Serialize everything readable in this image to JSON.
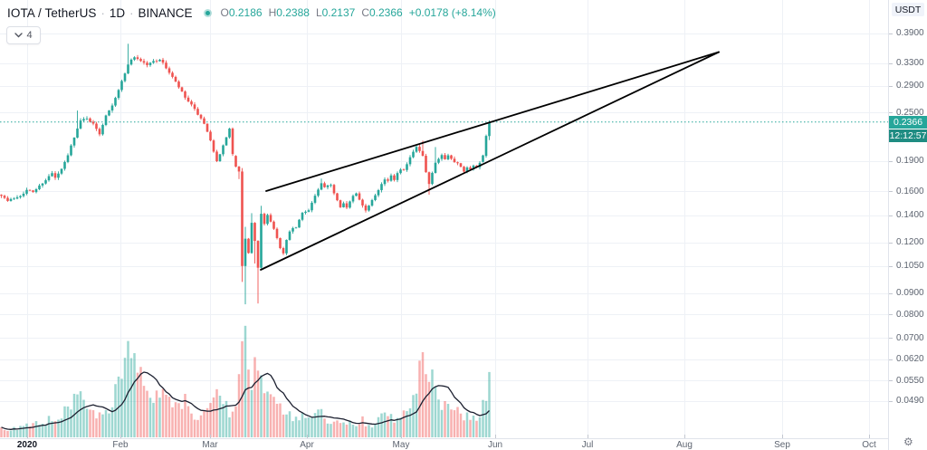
{
  "header": {
    "symbol": "IOTA / TetherUS",
    "separator": "·",
    "interval": "1D",
    "exchange": "BINANCE",
    "ohlc": [
      {
        "label": "O",
        "value": "0.2186"
      },
      {
        "label": "H",
        "value": "0.2388"
      },
      {
        "label": "L",
        "value": "0.2137"
      },
      {
        "label": "C",
        "value": "0.2366"
      }
    ],
    "change": "+0.0178 (+8.14%)",
    "legend_collapse_count": "4"
  },
  "price_axis": {
    "currency_label": "USDT",
    "levels": [
      0.39,
      0.33,
      0.29,
      0.25,
      0.19,
      0.16,
      0.14,
      0.12,
      0.105,
      0.09,
      0.08,
      0.07,
      0.062,
      0.055,
      0.049
    ],
    "level_labels": [
      "0.3900",
      "0.3300",
      "0.2900",
      "0.2500",
      "0.1900",
      "0.1600",
      "0.1400",
      "0.1200",
      "0.1050",
      "0.0900",
      "0.0800",
      "0.0700",
      "0.0620",
      "0.0550",
      "0.0490"
    ],
    "last_price_label": "0.2366",
    "countdown": "12:12:57"
  },
  "time_axis": {
    "ticks": [
      {
        "label": "2020",
        "x": 30,
        "year": true
      },
      {
        "label": "Feb",
        "x": 133
      },
      {
        "label": "Mar",
        "x": 232
      },
      {
        "label": "Apr",
        "x": 339
      },
      {
        "label": "May",
        "x": 443
      },
      {
        "label": "Jun",
        "x": 547
      },
      {
        "label": "Jul",
        "x": 649
      },
      {
        "label": "Aug",
        "x": 756
      },
      {
        "label": "Sep",
        "x": 864
      },
      {
        "label": "Oct",
        "x": 960
      }
    ]
  },
  "colors": {
    "up": "#26a69a",
    "down": "#ef5350",
    "up_volume": "rgba(38,166,154,0.45)",
    "down_volume": "rgba(239,83,80,0.45)",
    "grid": "#eef1f6",
    "trendline": "#000000",
    "volume_ma": "#1c2030",
    "price_line": "#26a69a",
    "price_badge_bg": "#26a69a",
    "countdown_badge_bg": "#1f8c82",
    "text": "#131722",
    "axis_text": "#5d6470"
  },
  "chart_data": {
    "type": "candlestick",
    "title": "IOTA / TetherUS 1D BINANCE",
    "scale": "logarithmic",
    "grid": true,
    "x_range": "Dec 2019 - Oct 2020 (data ends early Jun 2020)",
    "y_axis_levels": [
      0.39,
      0.33,
      0.29,
      0.25,
      0.19,
      0.16,
      0.14,
      0.12,
      0.105,
      0.09,
      0.08,
      0.07,
      0.062,
      0.055,
      0.049
    ],
    "current_price": 0.2366,
    "last_candle": {
      "open": 0.2186,
      "high": 0.2388,
      "low": 0.2137,
      "close": 0.2366,
      "change": 0.0178,
      "change_pct": 8.14
    },
    "candle_count": 155,
    "price_path_anchors": [
      [
        0,
        0.157
      ],
      [
        2,
        0.1515
      ],
      [
        4,
        0.154
      ],
      [
        6,
        0.1565
      ],
      [
        8,
        0.161
      ],
      [
        10,
        0.1595
      ],
      [
        12,
        0.165
      ],
      [
        14,
        0.171
      ],
      [
        16,
        0.177
      ],
      [
        17,
        0.1725
      ],
      [
        19,
        0.181
      ],
      [
        21,
        0.196
      ],
      [
        23,
        0.218
      ],
      [
        25,
        0.238
      ],
      [
        27,
        0.2425
      ],
      [
        29,
        0.2335
      ],
      [
        31,
        0.2215
      ],
      [
        33,
        0.2465
      ],
      [
        35,
        0.261
      ],
      [
        37,
        0.284
      ],
      [
        39,
        0.311
      ],
      [
        40,
        0.329
      ],
      [
        42,
        0.342
      ],
      [
        44,
        0.3345
      ],
      [
        46,
        0.3265
      ],
      [
        48,
        0.3335
      ],
      [
        50,
        0.337
      ],
      [
        52,
        0.3215
      ],
      [
        54,
        0.3045
      ],
      [
        56,
        0.288
      ],
      [
        58,
        0.2715
      ],
      [
        60,
        0.26
      ],
      [
        62,
        0.2475
      ],
      [
        64,
        0.2335
      ],
      [
        66,
        0.2125
      ],
      [
        68,
        0.1905
      ],
      [
        69,
        0.1965
      ],
      [
        70,
        0.2065
      ],
      [
        71,
        0.2175
      ],
      [
        72,
        0.2275
      ],
      [
        73,
        0.1975
      ],
      [
        74,
        0.184
      ],
      [
        75,
        0.179
      ],
      [
        76,
        0.105
      ],
      [
        77,
        0.1225
      ],
      [
        78,
        0.113
      ],
      [
        79,
        0.134
      ],
      [
        80,
        0.121
      ],
      [
        81,
        0.104
      ],
      [
        82,
        0.141
      ],
      [
        83,
        0.1335
      ],
      [
        84,
        0.1405
      ],
      [
        85,
        0.135
      ],
      [
        86,
        0.1295
      ],
      [
        87,
        0.1235
      ],
      [
        88,
        0.116
      ],
      [
        89,
        0.1125
      ],
      [
        90,
        0.121
      ],
      [
        91,
        0.128
      ],
      [
        93,
        0.1305
      ],
      [
        95,
        0.1415
      ],
      [
        97,
        0.1445
      ],
      [
        99,
        0.156
      ],
      [
        101,
        0.167
      ],
      [
        102,
        0.1635
      ],
      [
        104,
        0.1655
      ],
      [
        106,
        0.1525
      ],
      [
        107,
        0.147
      ],
      [
        108,
        0.1505
      ],
      [
        109,
        0.146
      ],
      [
        111,
        0.1555
      ],
      [
        112,
        0.158
      ],
      [
        114,
        0.1485
      ],
      [
        115,
        0.1435
      ],
      [
        117,
        0.153
      ],
      [
        119,
        0.162
      ],
      [
        121,
        0.1715
      ],
      [
        122,
        0.169
      ],
      [
        123,
        0.1755
      ],
      [
        124,
        0.1715
      ],
      [
        125,
        0.1775
      ],
      [
        126,
        0.182
      ],
      [
        127,
        0.1815
      ],
      [
        128,
        0.186
      ],
      [
        129,
        0.194
      ],
      [
        130,
        0.199
      ],
      [
        131,
        0.205
      ],
      [
        132,
        0.201
      ],
      [
        133,
        0.195
      ],
      [
        134,
        0.178
      ],
      [
        135,
        0.166
      ],
      [
        136,
        0.177
      ],
      [
        137,
        0.187
      ],
      [
        138,
        0.192
      ],
      [
        139,
        0.196
      ],
      [
        140,
        0.1925
      ],
      [
        141,
        0.1965
      ],
      [
        142,
        0.193
      ],
      [
        143,
        0.1895
      ],
      [
        144,
        0.1875
      ],
      [
        145,
        0.1835
      ],
      [
        146,
        0.1795
      ],
      [
        147,
        0.184
      ],
      [
        148,
        0.181
      ],
      [
        149,
        0.186
      ],
      [
        150,
        0.1825
      ],
      [
        151,
        0.188
      ],
      [
        152,
        0.196
      ],
      [
        153,
        0.2188
      ],
      [
        154,
        0.2366
      ]
    ],
    "candle_overrides": {
      "24": {
        "h": 0.2525
      },
      "40": {
        "h": 0.368
      },
      "74": {
        "o": 0.1955,
        "c": 0.184
      },
      "75": {
        "o": 0.184,
        "c": 0.179,
        "l": 0.1715
      },
      "76": {
        "o": 0.179,
        "c": 0.105,
        "h": 0.1825,
        "l": 0.096
      },
      "77": {
        "o": 0.105,
        "c": 0.1225,
        "l": 0.0846,
        "h": 0.131
      },
      "78": {
        "o": 0.1225,
        "c": 0.113
      },
      "79": {
        "o": 0.113,
        "c": 0.134,
        "h": 0.1415
      },
      "80": {
        "o": 0.134,
        "c": 0.121,
        "l": 0.1065
      },
      "81": {
        "o": 0.121,
        "c": 0.104,
        "l": 0.085
      },
      "82": {
        "o": 0.104,
        "c": 0.141,
        "h": 0.1475
      },
      "101": {
        "h": 0.172
      },
      "133": {
        "h": 0.213
      },
      "135": {
        "l": 0.157
      },
      "137": {
        "h": 0.2055
      },
      "152": {
        "o": 0.189,
        "c": 0.196
      },
      "153": {
        "o": 0.1955,
        "c": 0.2188,
        "h": 0.2205,
        "l": 0.1935
      },
      "154": {
        "o": 0.2186,
        "h": 0.2388,
        "l": 0.2137,
        "c": 0.2366
      }
    },
    "volume_anchors": [
      [
        0,
        10
      ],
      [
        3,
        8
      ],
      [
        6,
        11
      ],
      [
        9,
        13
      ],
      [
        12,
        15
      ],
      [
        15,
        20
      ],
      [
        17,
        15
      ],
      [
        20,
        27
      ],
      [
        22,
        36
      ],
      [
        24,
        45
      ],
      [
        26,
        35
      ],
      [
        28,
        26
      ],
      [
        30,
        21
      ],
      [
        32,
        25
      ],
      [
        34,
        36
      ],
      [
        36,
        52
      ],
      [
        38,
        68
      ],
      [
        40,
        103
      ],
      [
        41,
        84
      ],
      [
        42,
        90
      ],
      [
        43,
        74
      ],
      [
        44,
        64
      ],
      [
        46,
        50
      ],
      [
        48,
        43
      ],
      [
        50,
        39
      ],
      [
        52,
        46
      ],
      [
        54,
        38
      ],
      [
        56,
        31
      ],
      [
        58,
        40
      ],
      [
        60,
        29
      ],
      [
        62,
        25
      ],
      [
        64,
        31
      ],
      [
        66,
        38
      ],
      [
        68,
        48
      ],
      [
        70,
        34
      ],
      [
        72,
        29
      ],
      [
        74,
        41
      ],
      [
        75,
        56
      ],
      [
        76,
        104
      ],
      [
        77,
        122
      ],
      [
        78,
        72
      ],
      [
        79,
        60
      ],
      [
        80,
        86
      ],
      [
        81,
        66
      ],
      [
        82,
        62
      ],
      [
        84,
        46
      ],
      [
        86,
        38
      ],
      [
        88,
        30
      ],
      [
        90,
        26
      ],
      [
        92,
        22
      ],
      [
        94,
        19
      ],
      [
        96,
        24
      ],
      [
        98,
        19
      ],
      [
        100,
        28
      ],
      [
        102,
        24
      ],
      [
        104,
        17
      ],
      [
        106,
        15
      ],
      [
        108,
        13
      ],
      [
        110,
        17
      ],
      [
        112,
        13
      ],
      [
        114,
        19
      ],
      [
        116,
        14
      ],
      [
        118,
        16
      ],
      [
        120,
        21
      ],
      [
        122,
        26
      ],
      [
        124,
        19
      ],
      [
        126,
        29
      ],
      [
        128,
        25
      ],
      [
        130,
        38
      ],
      [
        131,
        55
      ],
      [
        132,
        86
      ],
      [
        133,
        92
      ],
      [
        134,
        60
      ],
      [
        135,
        54
      ],
      [
        136,
        60
      ],
      [
        137,
        66
      ],
      [
        138,
        44
      ],
      [
        140,
        34
      ],
      [
        142,
        29
      ],
      [
        144,
        27
      ],
      [
        146,
        23
      ],
      [
        148,
        21
      ],
      [
        150,
        24
      ],
      [
        152,
        34
      ],
      [
        153,
        47
      ],
      [
        154,
        62
      ]
    ],
    "volume_ma_window": 10,
    "trendlines": [
      {
        "name": "wedge-upper",
        "x1": 294,
        "y1": 211,
        "x2": 794,
        "y2": 57.5
      },
      {
        "name": "wedge-lower",
        "x1": 288,
        "y1": 298,
        "x2": 794,
        "y2": 57.5
      }
    ]
  }
}
